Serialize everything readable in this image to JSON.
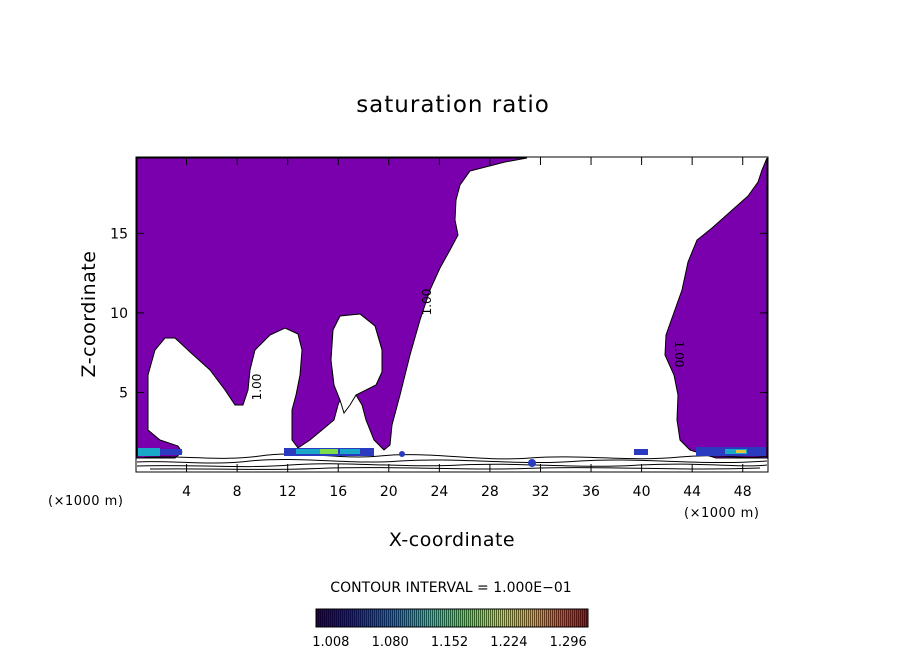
{
  "chart_data": {
    "type": "contour",
    "title": "saturation ratio",
    "xlabel": "X-coordinate",
    "ylabel": "Z-coordinate",
    "x_unit": "(×1000 m)",
    "y_unit": "(×1000 m)",
    "xlim": [
      0,
      50
    ],
    "ylim": [
      0,
      19.8
    ],
    "xticks": [
      4,
      8,
      12,
      16,
      20,
      24,
      28,
      32,
      36,
      40,
      44,
      48
    ],
    "yticks": [
      5,
      10,
      15
    ],
    "contour_interval_text": "CONTOUR INTERVAL = 1.000E−01",
    "contour_line_labels": [
      "1.00",
      "1.00",
      "1.00"
    ],
    "colorbar": {
      "tick_labels": [
        "1.008",
        "1.080",
        "1.152",
        "1.224",
        "1.296"
      ],
      "min": 0.99,
      "max": 1.32,
      "colormap": "rainbow"
    },
    "fill_color": "#7a00ae",
    "regions": [
      {
        "name": "left-saturated",
        "label": "saturation ratio > 1.00 (filled)"
      },
      {
        "name": "right-saturated",
        "label": "saturation ratio > 1.00 (filled)"
      }
    ]
  }
}
